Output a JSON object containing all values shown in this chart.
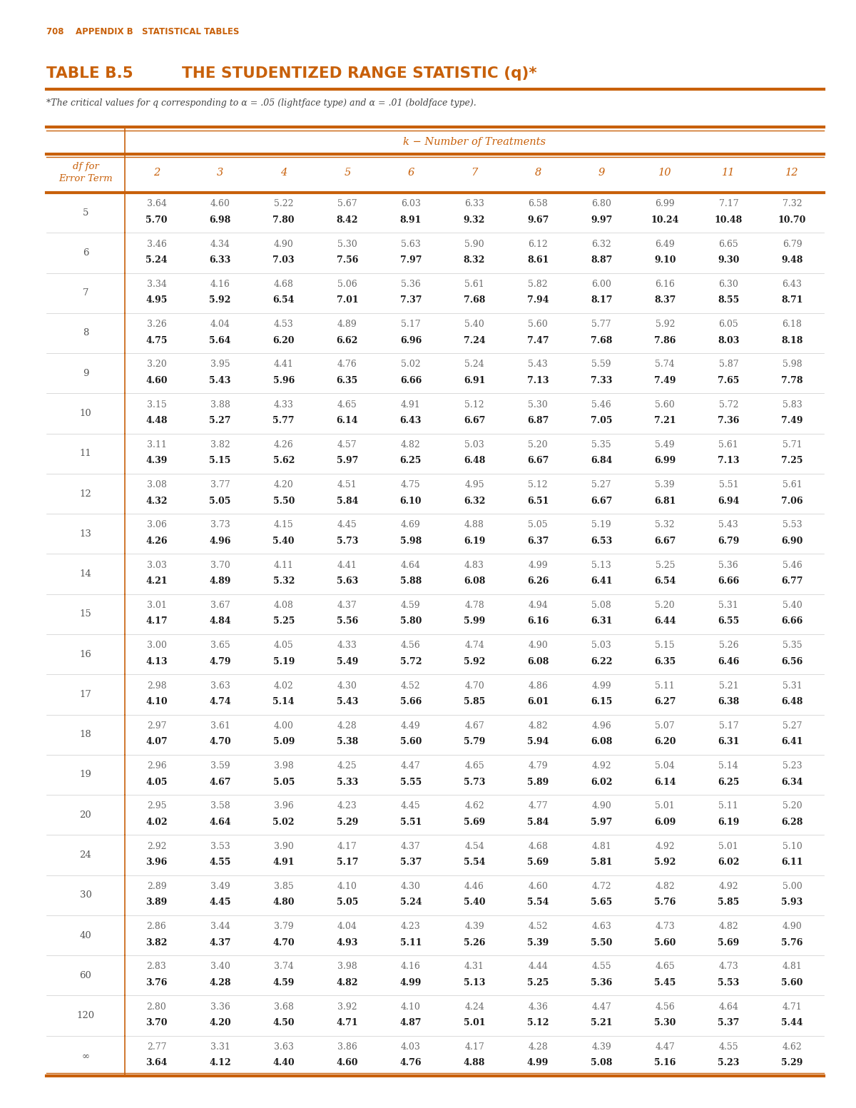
{
  "page_label": "708    APPENDIX B   STATISTICAL TABLES",
  "title_part1": "TABLE B.5",
  "title_part2": "THE STUDENTIZED RANGE STATISTIC (q)*",
  "footnote": "*The critical values for q corresponding to α = .05 (lightface type) and α = .01 (boldface type).",
  "col_header_label": "k − Number of Treatments",
  "columns": [
    "2",
    "3",
    "4",
    "5",
    "6",
    "7",
    "8",
    "9",
    "10",
    "11",
    "12"
  ],
  "df_values": [
    "5",
    "6",
    "7",
    "8",
    "9",
    "10",
    "11",
    "12",
    "13",
    "14",
    "15",
    "16",
    "17",
    "18",
    "19",
    "20",
    "24",
    "30",
    "40",
    "60",
    "120",
    "∞"
  ],
  "table_data": [
    [
      [
        "3.64",
        "5.70"
      ],
      [
        "4.60",
        "6.98"
      ],
      [
        "5.22",
        "7.80"
      ],
      [
        "5.67",
        "8.42"
      ],
      [
        "6.03",
        "8.91"
      ],
      [
        "6.33",
        "9.32"
      ],
      [
        "6.58",
        "9.67"
      ],
      [
        "6.80",
        "9.97"
      ],
      [
        "6.99",
        "10.24"
      ],
      [
        "7.17",
        "10.48"
      ],
      [
        "7.32",
        "10.70"
      ]
    ],
    [
      [
        "3.46",
        "5.24"
      ],
      [
        "4.34",
        "6.33"
      ],
      [
        "4.90",
        "7.03"
      ],
      [
        "5.30",
        "7.56"
      ],
      [
        "5.63",
        "7.97"
      ],
      [
        "5.90",
        "8.32"
      ],
      [
        "6.12",
        "8.61"
      ],
      [
        "6.32",
        "8.87"
      ],
      [
        "6.49",
        "9.10"
      ],
      [
        "6.65",
        "9.30"
      ],
      [
        "6.79",
        "9.48"
      ]
    ],
    [
      [
        "3.34",
        "4.95"
      ],
      [
        "4.16",
        "5.92"
      ],
      [
        "4.68",
        "6.54"
      ],
      [
        "5.06",
        "7.01"
      ],
      [
        "5.36",
        "7.37"
      ],
      [
        "5.61",
        "7.68"
      ],
      [
        "5.82",
        "7.94"
      ],
      [
        "6.00",
        "8.17"
      ],
      [
        "6.16",
        "8.37"
      ],
      [
        "6.30",
        "8.55"
      ],
      [
        "6.43",
        "8.71"
      ]
    ],
    [
      [
        "3.26",
        "4.75"
      ],
      [
        "4.04",
        "5.64"
      ],
      [
        "4.53",
        "6.20"
      ],
      [
        "4.89",
        "6.62"
      ],
      [
        "5.17",
        "6.96"
      ],
      [
        "5.40",
        "7.24"
      ],
      [
        "5.60",
        "7.47"
      ],
      [
        "5.77",
        "7.68"
      ],
      [
        "5.92",
        "7.86"
      ],
      [
        "6.05",
        "8.03"
      ],
      [
        "6.18",
        "8.18"
      ]
    ],
    [
      [
        "3.20",
        "4.60"
      ],
      [
        "3.95",
        "5.43"
      ],
      [
        "4.41",
        "5.96"
      ],
      [
        "4.76",
        "6.35"
      ],
      [
        "5.02",
        "6.66"
      ],
      [
        "5.24",
        "6.91"
      ],
      [
        "5.43",
        "7.13"
      ],
      [
        "5.59",
        "7.33"
      ],
      [
        "5.74",
        "7.49"
      ],
      [
        "5.87",
        "7.65"
      ],
      [
        "5.98",
        "7.78"
      ]
    ],
    [
      [
        "3.15",
        "4.48"
      ],
      [
        "3.88",
        "5.27"
      ],
      [
        "4.33",
        "5.77"
      ],
      [
        "4.65",
        "6.14"
      ],
      [
        "4.91",
        "6.43"
      ],
      [
        "5.12",
        "6.67"
      ],
      [
        "5.30",
        "6.87"
      ],
      [
        "5.46",
        "7.05"
      ],
      [
        "5.60",
        "7.21"
      ],
      [
        "5.72",
        "7.36"
      ],
      [
        "5.83",
        "7.49"
      ]
    ],
    [
      [
        "3.11",
        "4.39"
      ],
      [
        "3.82",
        "5.15"
      ],
      [
        "4.26",
        "5.62"
      ],
      [
        "4.57",
        "5.97"
      ],
      [
        "4.82",
        "6.25"
      ],
      [
        "5.03",
        "6.48"
      ],
      [
        "5.20",
        "6.67"
      ],
      [
        "5.35",
        "6.84"
      ],
      [
        "5.49",
        "6.99"
      ],
      [
        "5.61",
        "7.13"
      ],
      [
        "5.71",
        "7.25"
      ]
    ],
    [
      [
        "3.08",
        "4.32"
      ],
      [
        "3.77",
        "5.05"
      ],
      [
        "4.20",
        "5.50"
      ],
      [
        "4.51",
        "5.84"
      ],
      [
        "4.75",
        "6.10"
      ],
      [
        "4.95",
        "6.32"
      ],
      [
        "5.12",
        "6.51"
      ],
      [
        "5.27",
        "6.67"
      ],
      [
        "5.39",
        "6.81"
      ],
      [
        "5.51",
        "6.94"
      ],
      [
        "5.61",
        "7.06"
      ]
    ],
    [
      [
        "3.06",
        "4.26"
      ],
      [
        "3.73",
        "4.96"
      ],
      [
        "4.15",
        "5.40"
      ],
      [
        "4.45",
        "5.73"
      ],
      [
        "4.69",
        "5.98"
      ],
      [
        "4.88",
        "6.19"
      ],
      [
        "5.05",
        "6.37"
      ],
      [
        "5.19",
        "6.53"
      ],
      [
        "5.32",
        "6.67"
      ],
      [
        "5.43",
        "6.79"
      ],
      [
        "5.53",
        "6.90"
      ]
    ],
    [
      [
        "3.03",
        "4.21"
      ],
      [
        "3.70",
        "4.89"
      ],
      [
        "4.11",
        "5.32"
      ],
      [
        "4.41",
        "5.63"
      ],
      [
        "4.64",
        "5.88"
      ],
      [
        "4.83",
        "6.08"
      ],
      [
        "4.99",
        "6.26"
      ],
      [
        "5.13",
        "6.41"
      ],
      [
        "5.25",
        "6.54"
      ],
      [
        "5.36",
        "6.66"
      ],
      [
        "5.46",
        "6.77"
      ]
    ],
    [
      [
        "3.01",
        "4.17"
      ],
      [
        "3.67",
        "4.84"
      ],
      [
        "4.08",
        "5.25"
      ],
      [
        "4.37",
        "5.56"
      ],
      [
        "4.59",
        "5.80"
      ],
      [
        "4.78",
        "5.99"
      ],
      [
        "4.94",
        "6.16"
      ],
      [
        "5.08",
        "6.31"
      ],
      [
        "5.20",
        "6.44"
      ],
      [
        "5.31",
        "6.55"
      ],
      [
        "5.40",
        "6.66"
      ]
    ],
    [
      [
        "3.00",
        "4.13"
      ],
      [
        "3.65",
        "4.79"
      ],
      [
        "4.05",
        "5.19"
      ],
      [
        "4.33",
        "5.49"
      ],
      [
        "4.56",
        "5.72"
      ],
      [
        "4.74",
        "5.92"
      ],
      [
        "4.90",
        "6.08"
      ],
      [
        "5.03",
        "6.22"
      ],
      [
        "5.15",
        "6.35"
      ],
      [
        "5.26",
        "6.46"
      ],
      [
        "5.35",
        "6.56"
      ]
    ],
    [
      [
        "2.98",
        "4.10"
      ],
      [
        "3.63",
        "4.74"
      ],
      [
        "4.02",
        "5.14"
      ],
      [
        "4.30",
        "5.43"
      ],
      [
        "4.52",
        "5.66"
      ],
      [
        "4.70",
        "5.85"
      ],
      [
        "4.86",
        "6.01"
      ],
      [
        "4.99",
        "6.15"
      ],
      [
        "5.11",
        "6.27"
      ],
      [
        "5.21",
        "6.38"
      ],
      [
        "5.31",
        "6.48"
      ]
    ],
    [
      [
        "2.97",
        "4.07"
      ],
      [
        "3.61",
        "4.70"
      ],
      [
        "4.00",
        "5.09"
      ],
      [
        "4.28",
        "5.38"
      ],
      [
        "4.49",
        "5.60"
      ],
      [
        "4.67",
        "5.79"
      ],
      [
        "4.82",
        "5.94"
      ],
      [
        "4.96",
        "6.08"
      ],
      [
        "5.07",
        "6.20"
      ],
      [
        "5.17",
        "6.31"
      ],
      [
        "5.27",
        "6.41"
      ]
    ],
    [
      [
        "2.96",
        "4.05"
      ],
      [
        "3.59",
        "4.67"
      ],
      [
        "3.98",
        "5.05"
      ],
      [
        "4.25",
        "5.33"
      ],
      [
        "4.47",
        "5.55"
      ],
      [
        "4.65",
        "5.73"
      ],
      [
        "4.79",
        "5.89"
      ],
      [
        "4.92",
        "6.02"
      ],
      [
        "5.04",
        "6.14"
      ],
      [
        "5.14",
        "6.25"
      ],
      [
        "5.23",
        "6.34"
      ]
    ],
    [
      [
        "2.95",
        "4.02"
      ],
      [
        "3.58",
        "4.64"
      ],
      [
        "3.96",
        "5.02"
      ],
      [
        "4.23",
        "5.29"
      ],
      [
        "4.45",
        "5.51"
      ],
      [
        "4.62",
        "5.69"
      ],
      [
        "4.77",
        "5.84"
      ],
      [
        "4.90",
        "5.97"
      ],
      [
        "5.01",
        "6.09"
      ],
      [
        "5.11",
        "6.19"
      ],
      [
        "5.20",
        "6.28"
      ]
    ],
    [
      [
        "2.92",
        "3.96"
      ],
      [
        "3.53",
        "4.55"
      ],
      [
        "3.90",
        "4.91"
      ],
      [
        "4.17",
        "5.17"
      ],
      [
        "4.37",
        "5.37"
      ],
      [
        "4.54",
        "5.54"
      ],
      [
        "4.68",
        "5.69"
      ],
      [
        "4.81",
        "5.81"
      ],
      [
        "4.92",
        "5.92"
      ],
      [
        "5.01",
        "6.02"
      ],
      [
        "5.10",
        "6.11"
      ]
    ],
    [
      [
        "2.89",
        "3.89"
      ],
      [
        "3.49",
        "4.45"
      ],
      [
        "3.85",
        "4.80"
      ],
      [
        "4.10",
        "5.05"
      ],
      [
        "4.30",
        "5.24"
      ],
      [
        "4.46",
        "5.40"
      ],
      [
        "4.60",
        "5.54"
      ],
      [
        "4.72",
        "5.65"
      ],
      [
        "4.82",
        "5.76"
      ],
      [
        "4.92",
        "5.85"
      ],
      [
        "5.00",
        "5.93"
      ]
    ],
    [
      [
        "2.86",
        "3.82"
      ],
      [
        "3.44",
        "4.37"
      ],
      [
        "3.79",
        "4.70"
      ],
      [
        "4.04",
        "4.93"
      ],
      [
        "4.23",
        "5.11"
      ],
      [
        "4.39",
        "5.26"
      ],
      [
        "4.52",
        "5.39"
      ],
      [
        "4.63",
        "5.50"
      ],
      [
        "4.73",
        "5.60"
      ],
      [
        "4.82",
        "5.69"
      ],
      [
        "4.90",
        "5.76"
      ]
    ],
    [
      [
        "2.83",
        "3.76"
      ],
      [
        "3.40",
        "4.28"
      ],
      [
        "3.74",
        "4.59"
      ],
      [
        "3.98",
        "4.82"
      ],
      [
        "4.16",
        "4.99"
      ],
      [
        "4.31",
        "5.13"
      ],
      [
        "4.44",
        "5.25"
      ],
      [
        "4.55",
        "5.36"
      ],
      [
        "4.65",
        "5.45"
      ],
      [
        "4.73",
        "5.53"
      ],
      [
        "4.81",
        "5.60"
      ]
    ],
    [
      [
        "2.80",
        "3.70"
      ],
      [
        "3.36",
        "4.20"
      ],
      [
        "3.68",
        "4.50"
      ],
      [
        "3.92",
        "4.71"
      ],
      [
        "4.10",
        "4.87"
      ],
      [
        "4.24",
        "5.01"
      ],
      [
        "4.36",
        "5.12"
      ],
      [
        "4.47",
        "5.21"
      ],
      [
        "4.56",
        "5.30"
      ],
      [
        "4.64",
        "5.37"
      ],
      [
        "4.71",
        "5.44"
      ]
    ],
    [
      [
        "2.77",
        "3.64"
      ],
      [
        "3.31",
        "4.12"
      ],
      [
        "3.63",
        "4.40"
      ],
      [
        "3.86",
        "4.60"
      ],
      [
        "4.03",
        "4.76"
      ],
      [
        "4.17",
        "4.88"
      ],
      [
        "4.28",
        "4.99"
      ],
      [
        "4.39",
        "5.08"
      ],
      [
        "4.47",
        "5.16"
      ],
      [
        "4.55",
        "5.23"
      ],
      [
        "4.62",
        "5.29"
      ]
    ]
  ],
  "orange_color": "#C8600A",
  "line_color": "#C8600A",
  "bg_color": "#FFFFFF"
}
